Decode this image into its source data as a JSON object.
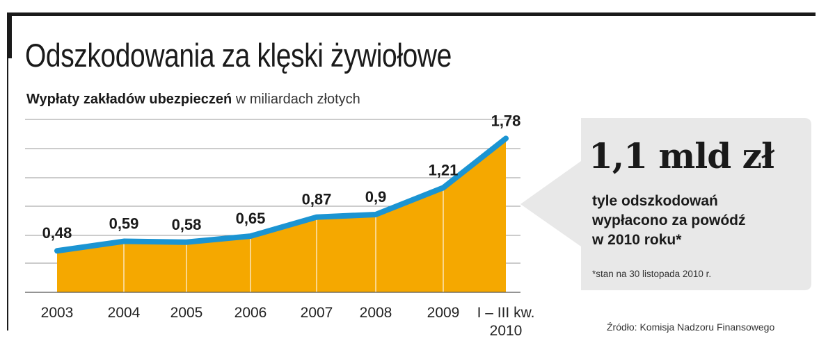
{
  "header": {
    "title": "Odszkodowania za klęski żywiołowe",
    "subtitle_bold": "Wypłaty zakładów ubezpieczeń",
    "subtitle_unit": "w miliardach złotych"
  },
  "callout": {
    "headline": "1,1 mld zł",
    "lines": [
      "tyle odszkodowań",
      "wypłacono za powódź",
      "w 2010 roku*"
    ],
    "footnote": "*stan na 30 listopada 2010 r."
  },
  "source": "Źródło: Komisja Nadzoru Finansowego",
  "colors": {
    "area": "#f5a800",
    "line": "#1b94d2",
    "grid": "#999999",
    "callout_bg": "#e8e8e8",
    "text": "#1a1a1a"
  },
  "chart_data": {
    "type": "area",
    "title": "Odszkodowania za klęski żywiołowe",
    "ylabel": "w miliardach złotych",
    "categories": [
      "2003",
      "2004",
      "2005",
      "2006",
      "2007",
      "2008",
      "2009",
      "I – III kw. 2010"
    ],
    "category_lines": [
      [
        "2003"
      ],
      [
        "2004"
      ],
      [
        "2005"
      ],
      [
        "2006"
      ],
      [
        "2007"
      ],
      [
        "2008"
      ],
      [
        "2009"
      ],
      [
        "I – III kw.",
        "2010"
      ]
    ],
    "values": [
      0.48,
      0.59,
      0.58,
      0.65,
      0.87,
      0.9,
      1.21,
      1.78
    ],
    "value_labels": [
      "0,48",
      "0,59",
      "0,58",
      "0,65",
      "0,87",
      "0,9",
      "1,21",
      "1,78"
    ],
    "ylim": [
      0,
      2.0
    ],
    "grid": true,
    "legend": "none"
  }
}
